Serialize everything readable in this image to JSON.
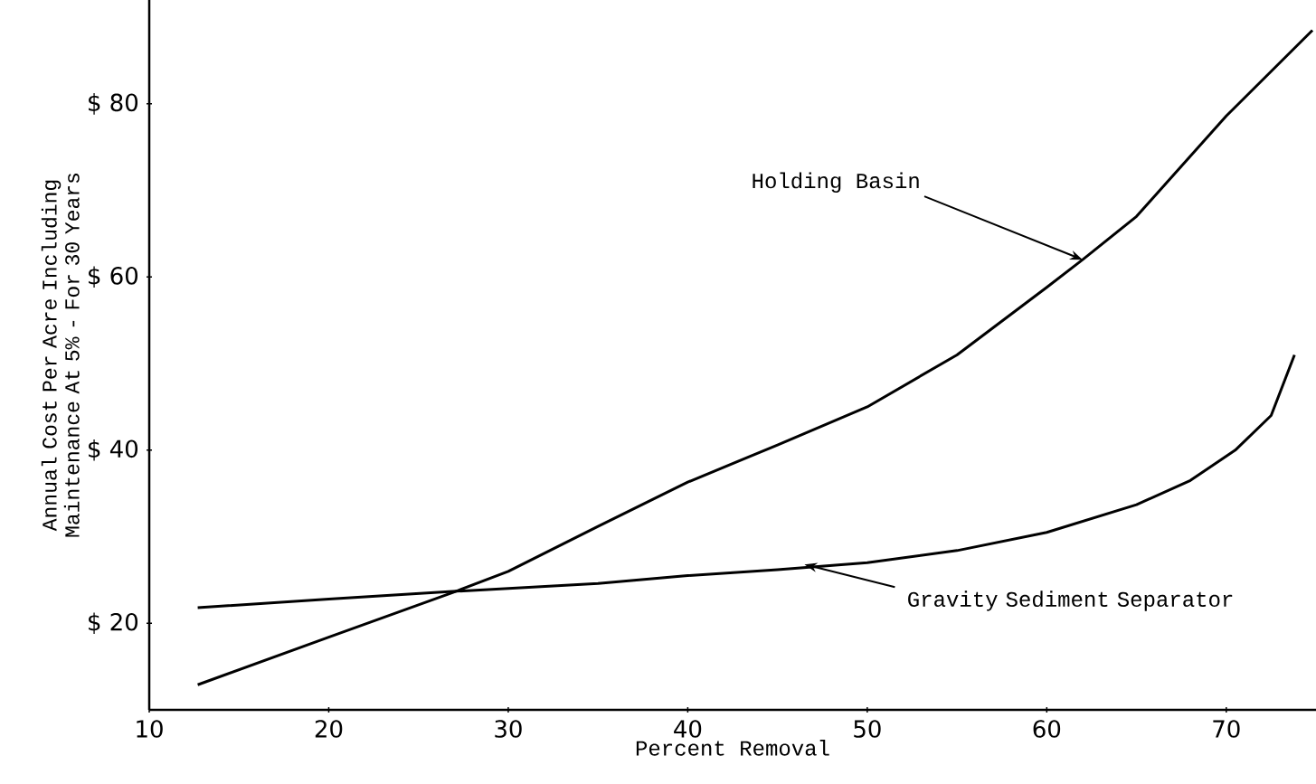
{
  "chart_data": {
    "type": "line",
    "xlabel": "Percent Removal",
    "ylabel": "Annual Cost Per Acre Including Maintenance At 5% - For 30 Years",
    "xlim": [
      10,
      75
    ],
    "ylim": [
      10,
      92
    ],
    "xticks": [
      10,
      20,
      30,
      40,
      50,
      60,
      70
    ],
    "yticks": [
      {
        "value": 20,
        "label": "$ 20"
      },
      {
        "value": 40,
        "label": "$ 40"
      },
      {
        "value": 60,
        "label": "$ 60"
      },
      {
        "value": 80,
        "label": "$ 80"
      }
    ],
    "grid": false,
    "marker": "none",
    "line_style": "solid",
    "series": [
      {
        "color": "#000000",
        "x": [
          12.7,
          20,
          27.1,
          30,
          35,
          40,
          45,
          50,
          55,
          60,
          62,
          65,
          70,
          74.8
        ],
        "values": [
          12.9,
          18.4,
          23.7,
          26,
          31.2,
          36.3,
          40.6,
          45,
          51,
          58.8,
          62,
          67,
          78.6,
          88.5
        ]
      },
      {
        "color": "#000000",
        "x": [
          12.7,
          20,
          27.1,
          35,
          40,
          45,
          50,
          55,
          60,
          65,
          68,
          70.5,
          72.5,
          73.8
        ],
        "values": [
          21.8,
          22.8,
          23.7,
          24.6,
          25.5,
          26.2,
          27,
          28.4,
          30.5,
          33.7,
          36.5,
          40,
          44,
          51
        ]
      }
    ],
    "annotations": [
      {
        "text": "Holding Basin",
        "x": 62,
        "y": 62
      },
      {
        "text": "Gravity Sediment Separator",
        "x": 46.5,
        "y": 26.8
      }
    ]
  }
}
